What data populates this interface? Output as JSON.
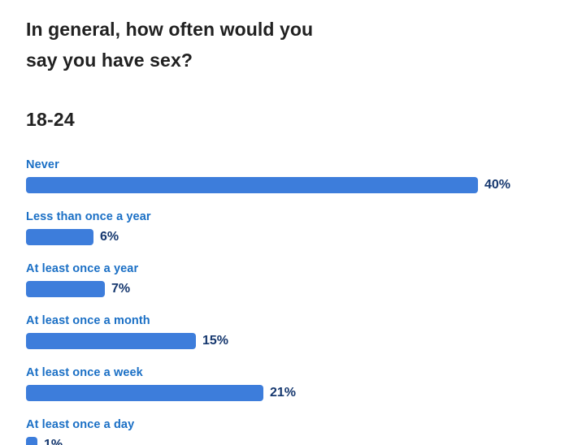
{
  "chart_data": {
    "type": "bar",
    "orientation": "horizontal",
    "title": "In general, how often would you say you have sex?",
    "group_label": "18-24",
    "categories": [
      "Never",
      "Less than once a year",
      "At least once a year",
      "At least once a month",
      "At least once a week",
      "At least once a day"
    ],
    "values": [
      40,
      6,
      7,
      15,
      21,
      1
    ],
    "value_labels": [
      "40%",
      "6%",
      "7%",
      "15%",
      "21%",
      "1%"
    ],
    "xlim": [
      0,
      40
    ],
    "grid": false,
    "legend": false,
    "colors": {
      "bar": "#3D7DDB",
      "category_label": "#1A6FC5",
      "value_label": "#16386F",
      "title": "#212121"
    }
  }
}
